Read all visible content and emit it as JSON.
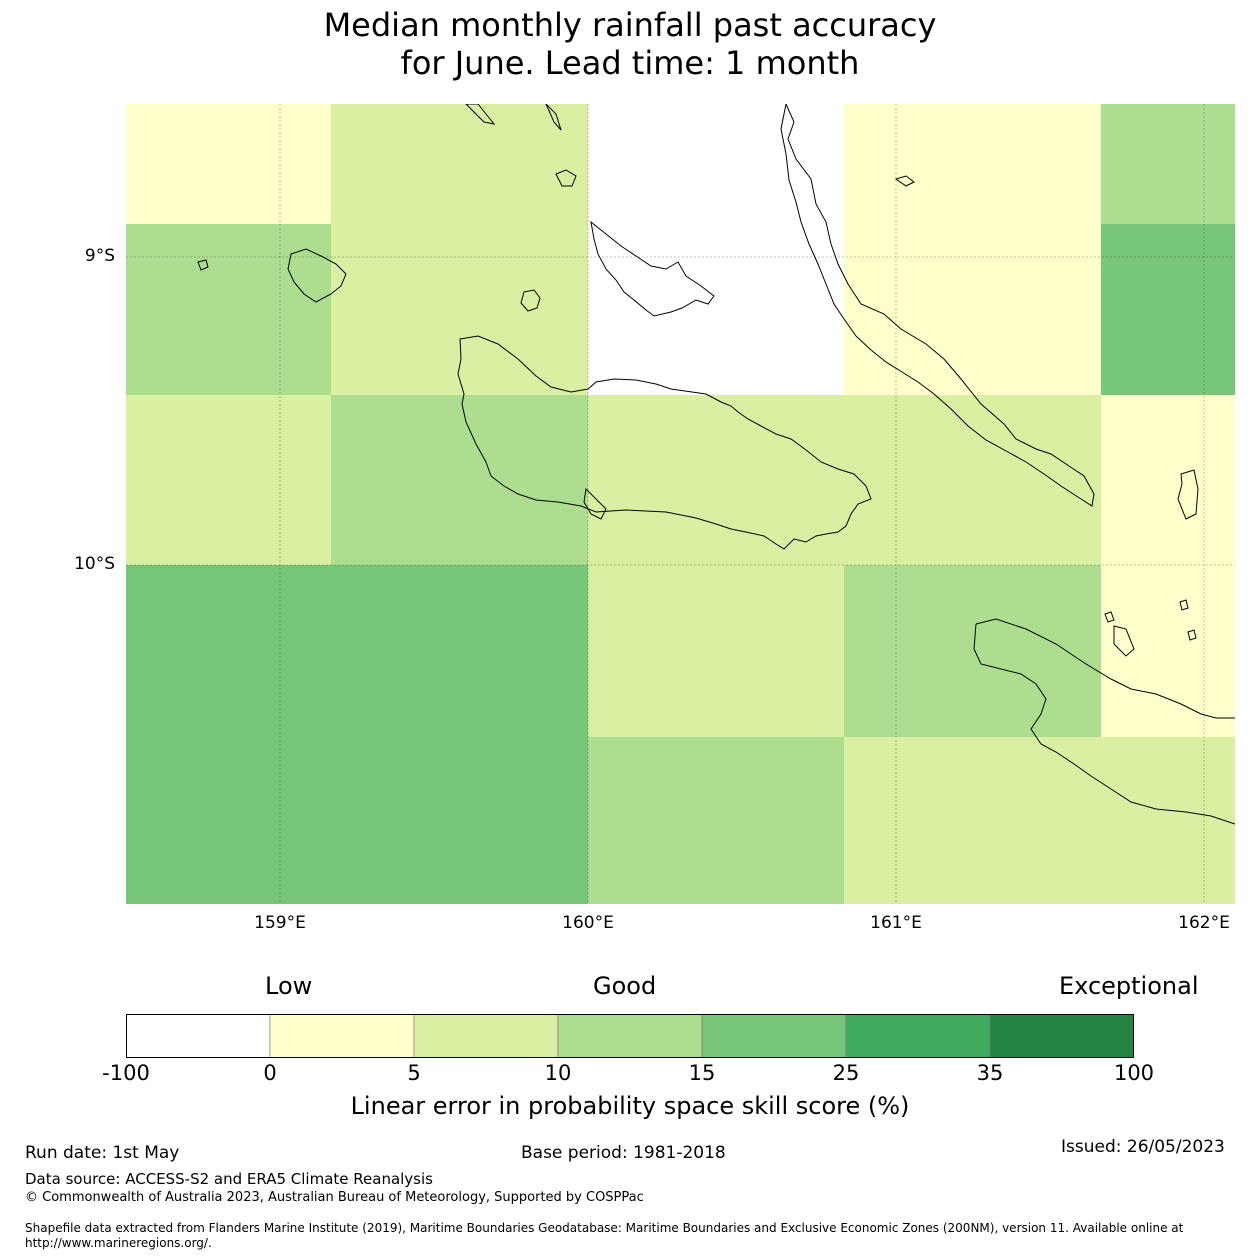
{
  "title_line1": "Median monthly rainfall past accuracy",
  "title_line2": "for June. Lead time: 1 month",
  "map": {
    "lon_range": [
      158.5,
      162.1
    ],
    "lat_range": [
      -11.1,
      -8.5
    ],
    "lat_labels": [
      "9°S",
      "10°S"
    ],
    "lon_labels": [
      "159°E",
      "160°E",
      "161°E",
      "162°E"
    ],
    "grid_cells": [
      {
        "row": 0,
        "col": 0,
        "bin": 1
      },
      {
        "row": 0,
        "col": 1,
        "bin": 2
      },
      {
        "row": 0,
        "col": 2,
        "bin": 0
      },
      {
        "row": 0,
        "col": 3,
        "bin": 1
      },
      {
        "row": 0,
        "col": 4,
        "bin": 3
      },
      {
        "row": 1,
        "col": 0,
        "bin": 3
      },
      {
        "row": 1,
        "col": 1,
        "bin": 2
      },
      {
        "row": 1,
        "col": 2,
        "bin": 0
      },
      {
        "row": 1,
        "col": 3,
        "bin": 1
      },
      {
        "row": 1,
        "col": 4,
        "bin": 4
      },
      {
        "row": 2,
        "col": 0,
        "bin": 2
      },
      {
        "row": 2,
        "col": 1,
        "bin": 3
      },
      {
        "row": 2,
        "col": 2,
        "bin": 2
      },
      {
        "row": 2,
        "col": 3,
        "bin": 2
      },
      {
        "row": 2,
        "col": 4,
        "bin": 1
      },
      {
        "row": 3,
        "col": 0,
        "bin": 4
      },
      {
        "row": 3,
        "col": 1,
        "bin": 4
      },
      {
        "row": 3,
        "col": 2,
        "bin": 2
      },
      {
        "row": 3,
        "col": 3,
        "bin": 3
      },
      {
        "row": 3,
        "col": 4,
        "bin": 1
      },
      {
        "row": 4,
        "col": 0,
        "bin": 4
      },
      {
        "row": 4,
        "col": 1,
        "bin": 4
      },
      {
        "row": 4,
        "col": 2,
        "bin": 3
      },
      {
        "row": 4,
        "col": 3,
        "bin": 2
      },
      {
        "row": 4,
        "col": 4,
        "bin": 2
      }
    ]
  },
  "colorbar": {
    "qualitative_labels": [
      "Low",
      "Good",
      "Exceptional"
    ],
    "ticks": [
      "-100",
      "0",
      "5",
      "10",
      "15",
      "25",
      "35",
      "100"
    ],
    "colors": [
      "#ffffff",
      "#ffffcc",
      "#d9f0a3",
      "#addd8e",
      "#78c679",
      "#41ab5d",
      "#238443"
    ],
    "title": "Linear error in probability space skill score (%)"
  },
  "footer": {
    "run_date": "Run date: 1st May",
    "base_period": "Base period: 1981-2018",
    "issued": "Issued: 26/05/2023",
    "data_source": "Data source: ACCESS-S2 and ERA5 Climate Reanalysis",
    "copyright": "© Commonwealth of Australia 2023, Australian Bureau of Meteorology, Supported by COSPPac",
    "shapefile_line1": "Shapefile data extracted from Flanders Marine Institute (2019), Maritime Boundaries Geodatabase: Maritime Boundaries and Exclusive Economic Zones (200NM), version 11. Available online at",
    "shapefile_line2": "http://www.marineregions.org/."
  }
}
